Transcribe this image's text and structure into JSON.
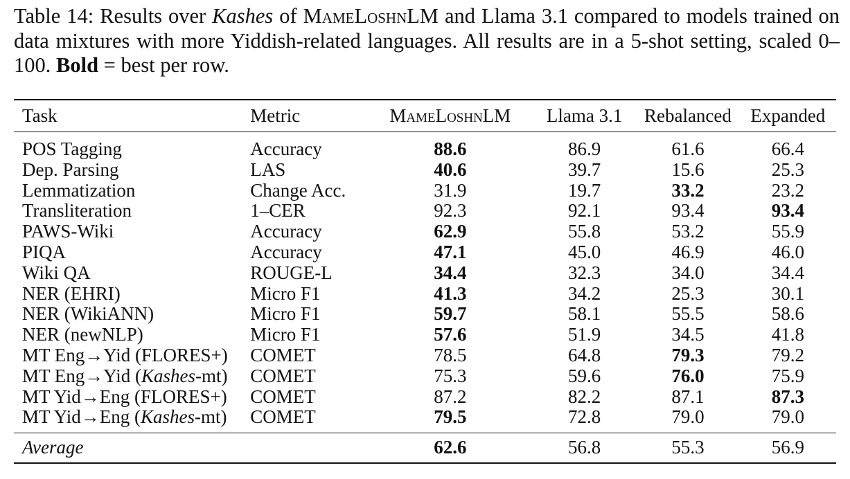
{
  "caption": {
    "label": "Table 14:",
    "text_1": "Results over",
    "corpus_name": "Kashes",
    "text_2": "of",
    "model_name": "MameLoshnLM",
    "text_3": "and Llama 3.1 compared to models trained on data mixtures with more Yiddish-related languages. All results are in a 5-shot setting, scaled 0–100.",
    "bold_word": "Bold",
    "text_4": "= best per row."
  },
  "table": {
    "headers": {
      "task": "Task",
      "metric": "Metric",
      "mameloshnlm": "MameLoshnLM",
      "llama": "Llama 3.1",
      "rebalanced": "Rebalanced",
      "expanded": "Expanded"
    },
    "rows": [
      {
        "task": "POS Tagging",
        "metric": "Accuracy",
        "values": [
          "88.6",
          "86.9",
          "61.6",
          "66.4"
        ],
        "best": 0
      },
      {
        "task": "Dep. Parsing",
        "metric": "LAS",
        "values": [
          "40.6",
          "39.7",
          "15.6",
          "25.3"
        ],
        "best": 0
      },
      {
        "task": "Lemmatization",
        "metric": "Change Acc.",
        "values": [
          "31.9",
          "19.7",
          "33.2",
          "23.2"
        ],
        "best": 2
      },
      {
        "task": "Transliteration",
        "metric": "1–CER",
        "values": [
          "92.3",
          "92.1",
          "93.4",
          "93.4"
        ],
        "best": 3
      },
      {
        "task": "PAWS-Wiki",
        "metric": "Accuracy",
        "values": [
          "62.9",
          "55.8",
          "53.2",
          "55.9"
        ],
        "best": 0
      },
      {
        "task": "PIQA",
        "metric": "Accuracy",
        "values": [
          "47.1",
          "45.0",
          "46.9",
          "46.0"
        ],
        "best": 0
      },
      {
        "task": "Wiki QA",
        "metric": "ROUGE-L",
        "values": [
          "34.4",
          "32.3",
          "34.0",
          "34.4"
        ],
        "best": 0
      },
      {
        "task": "NER (EHRI)",
        "metric": "Micro F1",
        "values": [
          "41.3",
          "34.2",
          "25.3",
          "30.1"
        ],
        "best": 0
      },
      {
        "task": "NER (WikiANN)",
        "metric": "Micro F1",
        "values": [
          "59.7",
          "58.1",
          "55.5",
          "58.6"
        ],
        "best": 0
      },
      {
        "task": "NER (newNLP)",
        "metric": "Micro F1",
        "values": [
          "57.6",
          "51.9",
          "34.5",
          "41.8"
        ],
        "best": 0
      },
      {
        "task_pre": "MT Eng→Yid (",
        "task_it": "",
        "task_post": "FLORES+)",
        "metric": "COMET",
        "values": [
          "78.5",
          "64.8",
          "79.3",
          "79.2"
        ],
        "best": 2
      },
      {
        "task_pre": "MT Eng→Yid (",
        "task_it": "Kashes",
        "task_post": "-mt)",
        "metric": "COMET",
        "values": [
          "75.3",
          "59.6",
          "76.0",
          "75.9"
        ],
        "best": 2
      },
      {
        "task_pre": "MT Yid→Eng (",
        "task_it": "",
        "task_post": "FLORES+)",
        "metric": "COMET",
        "values": [
          "87.2",
          "82.2",
          "87.1",
          "87.3"
        ],
        "best": 3
      },
      {
        "task_pre": "MT Yid→Eng (",
        "task_it": "Kashes",
        "task_post": "-mt)",
        "metric": "COMET",
        "values": [
          "79.5",
          "72.8",
          "79.0",
          "79.0"
        ],
        "best": 0
      }
    ],
    "average": {
      "label": "Average",
      "values": [
        "62.6",
        "56.8",
        "55.3",
        "56.9"
      ],
      "best": 0
    }
  }
}
